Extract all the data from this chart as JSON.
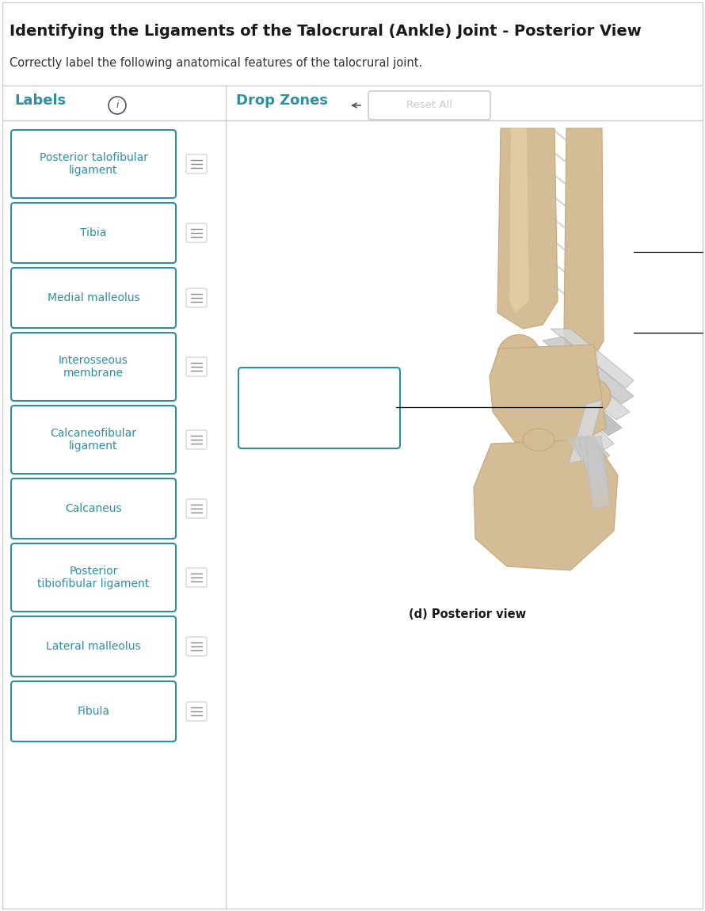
{
  "title": "Identifying the Ligaments of the Talocrural (Ankle) Joint - Posterior View",
  "subtitle": "Correctly label the following anatomical features of the talocrural joint.",
  "bg_color": "#ffffff",
  "title_color": "#1a1a1a",
  "subtitle_color": "#333333",
  "teal_color": "#2d8fa4",
  "label_border_color": "#2d8fa4",
  "label_text_color": "#2d8fa4",
  "panel_border_color": "#cccccc",
  "labels_header": "Labels",
  "dropzones_header": "Drop Zones",
  "reset_button_text": "Reset All",
  "labels": [
    "Posterior talofibular\nligament",
    "Tibia",
    "Medial malleolus",
    "Interosseous\nmembrane",
    "Calcaneofibular\nligament",
    "Calcaneus",
    "Posterior\ntibiofibular ligament",
    "Lateral malleolus",
    "Fibula"
  ],
  "poster_view_label": "(d) Posterior view"
}
